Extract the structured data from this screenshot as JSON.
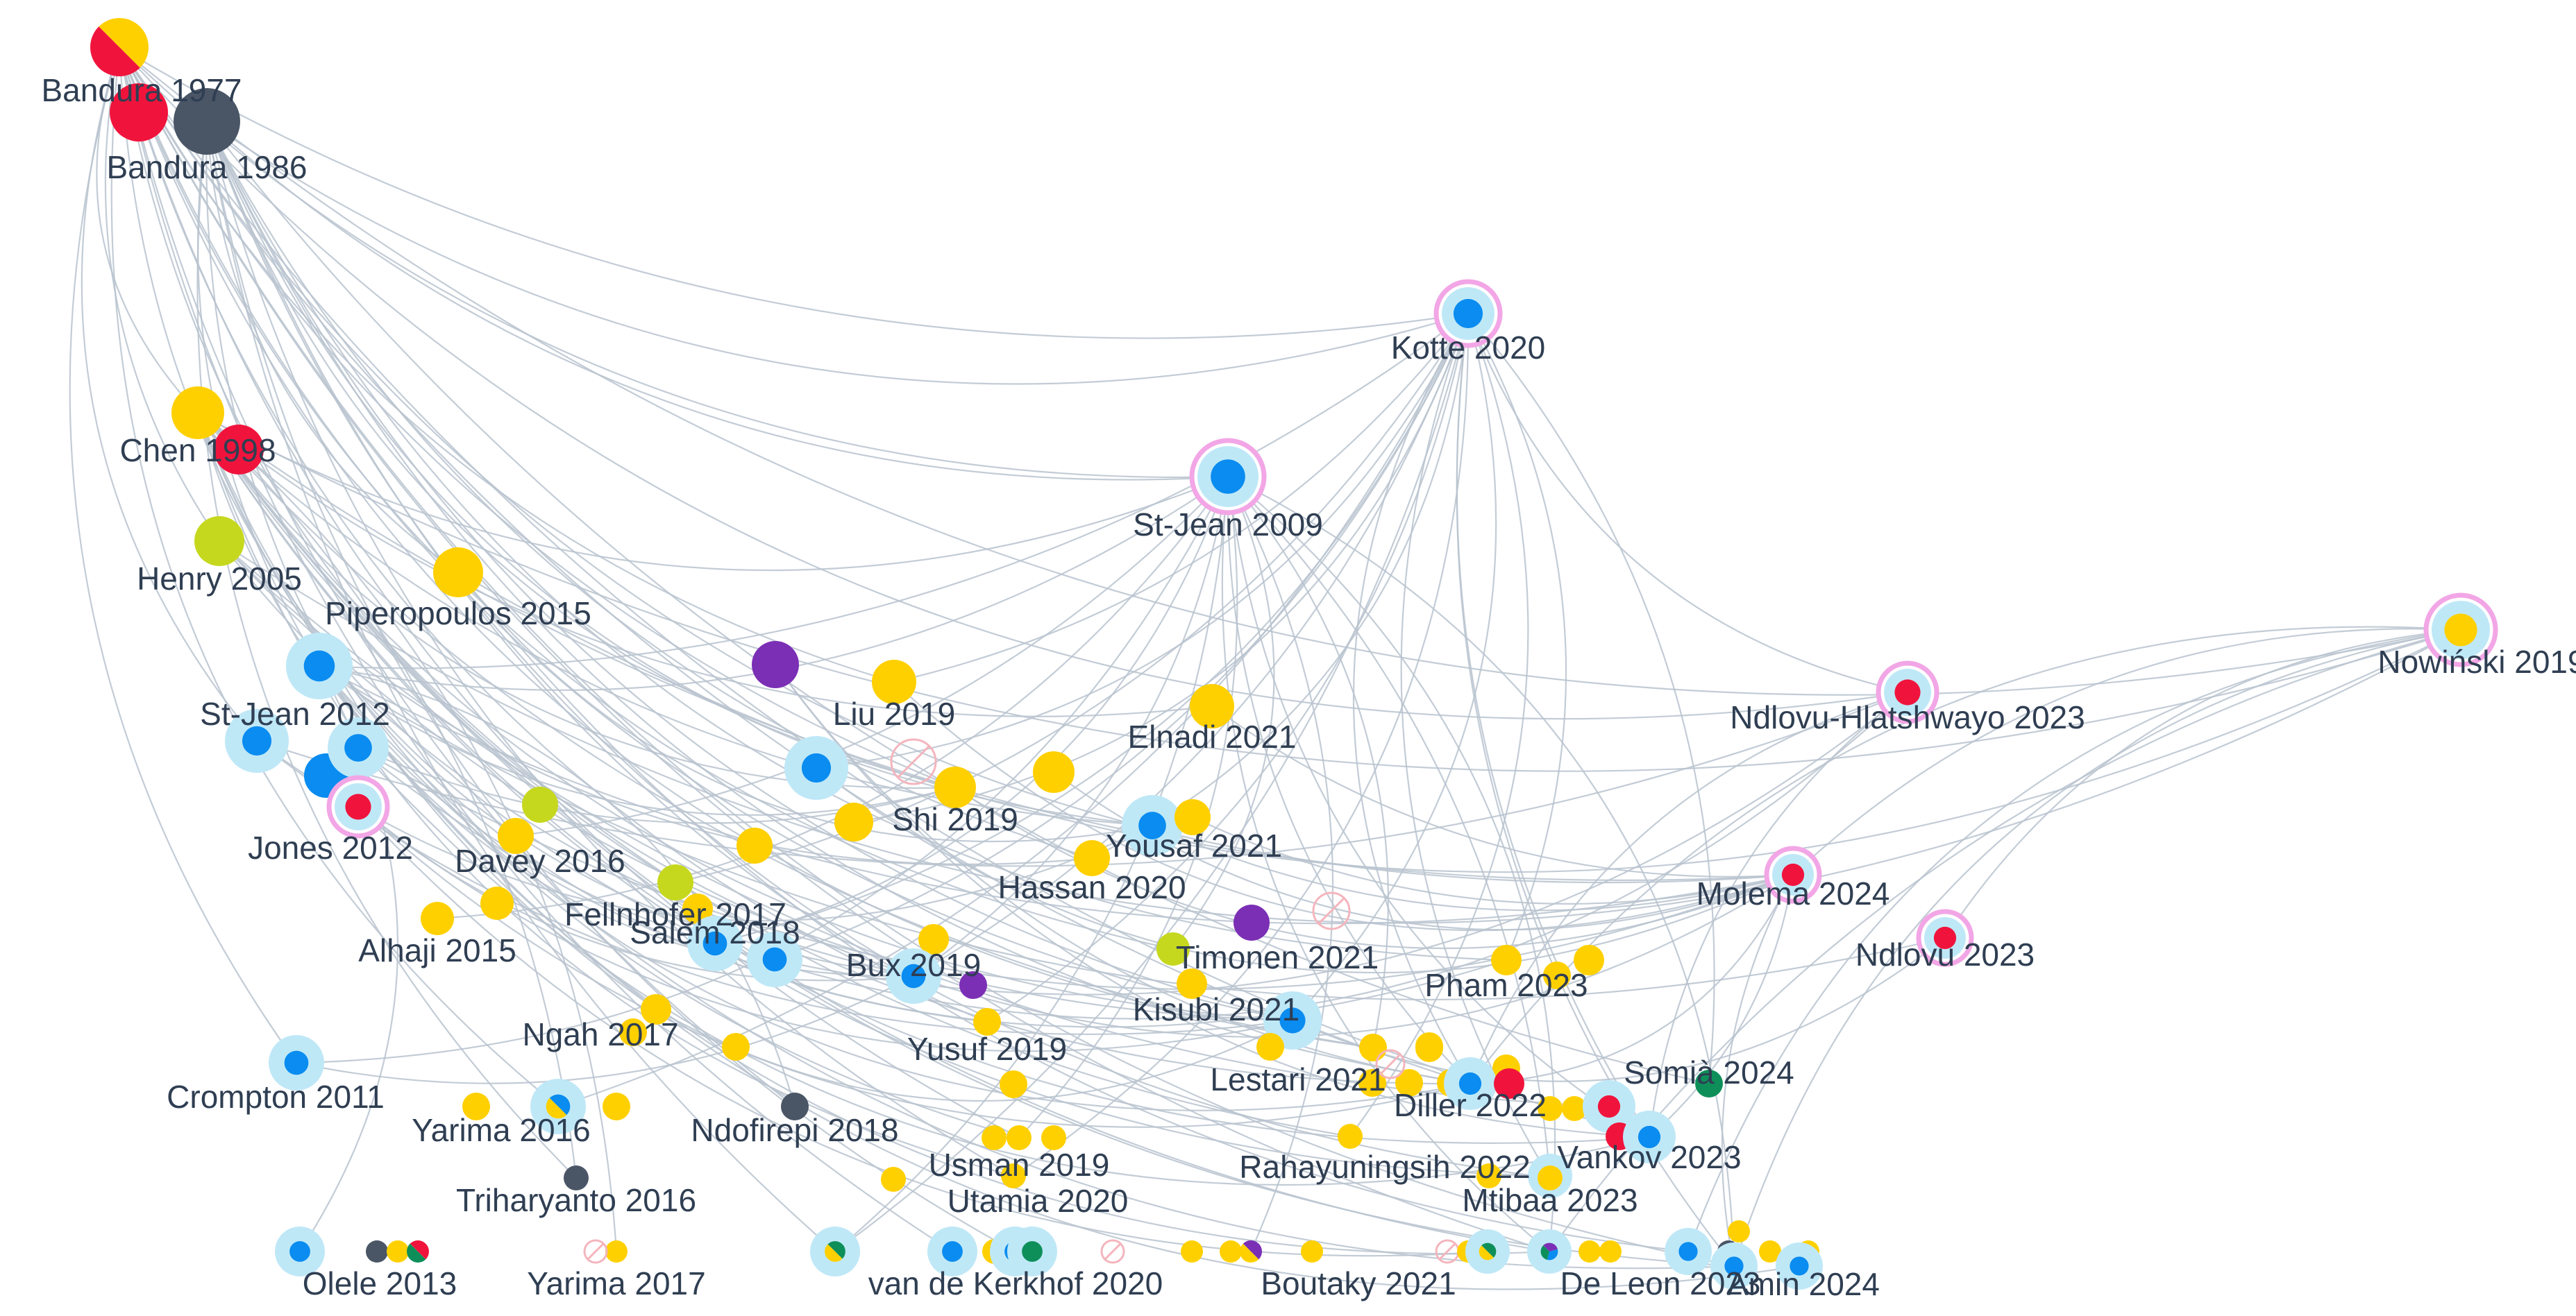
{
  "colors": {
    "yellow": "#FFD000",
    "blue": "#0A8CF0",
    "red": "#F0143C",
    "dark": "#4A5666",
    "lime": "#C6D81E",
    "purple": "#7B2FB5",
    "green": "#0E8F5A",
    "halo_blue": "#BFE8F7",
    "halo_pink": "#F2A6E6",
    "edge": "#B9C3CF",
    "label": "#2F3E52",
    "excluded": "#F4B5BD"
  },
  "nodes": [
    {
      "id": "bandura1977",
      "label": "Bandura 1977",
      "colors": [
        "yellow",
        "red"
      ]
    },
    {
      "id": "bandura1977b",
      "label": "",
      "colors": [
        "red"
      ]
    },
    {
      "id": "bandura1986",
      "label": "Bandura 1986",
      "colors": [
        "dark"
      ]
    },
    {
      "id": "chen1998",
      "label": "Chen 1998",
      "colors": [
        "yellow"
      ]
    },
    {
      "id": "chen1998b",
      "label": "",
      "colors": [
        "red"
      ]
    },
    {
      "id": "henry2005",
      "label": "Henry 2005",
      "colors": [
        "lime"
      ]
    },
    {
      "id": "piperopoulos2015",
      "label": "Piperopoulos 2015",
      "colors": [
        "yellow"
      ]
    },
    {
      "id": "stjean2012",
      "label": "St-Jean 2012",
      "colors": [
        "blue"
      ],
      "halo": "halo_blue"
    },
    {
      "id": "n_b1",
      "label": "",
      "colors": [
        "blue"
      ],
      "halo": "halo_blue"
    },
    {
      "id": "n_b2",
      "label": "",
      "colors": [
        "blue"
      ]
    },
    {
      "id": "n_b3",
      "label": "",
      "colors": [
        "blue"
      ],
      "halo": "halo_blue"
    },
    {
      "id": "jones2012",
      "label": "Jones 2012",
      "colors": [
        "red"
      ],
      "halo": "halo_pink"
    },
    {
      "id": "davey2016",
      "label": "Davey 2016",
      "colors": [
        "yellow"
      ]
    },
    {
      "id": "n_lime1",
      "label": "",
      "colors": [
        "lime"
      ]
    },
    {
      "id": "alhaji2015",
      "label": "Alhaji 2015",
      "colors": [
        "yellow"
      ]
    },
    {
      "id": "n_y_a",
      "label": "",
      "colors": [
        "yellow"
      ]
    },
    {
      "id": "fellnhofer2017",
      "label": "Fellnhofer 2017",
      "colors": [
        "lime"
      ]
    },
    {
      "id": "n_y_b",
      "label": "",
      "colors": [
        "yellow"
      ]
    },
    {
      "id": "salem2018",
      "label": "Salem 2018",
      "colors": [
        "blue"
      ],
      "halo": "halo_blue"
    },
    {
      "id": "n_b4",
      "label": "",
      "colors": [
        "blue"
      ],
      "halo": "halo_blue"
    },
    {
      "id": "ngah2017",
      "label": "Ngah 2017",
      "colors": [
        "yellow"
      ]
    },
    {
      "id": "n_y_c",
      "label": "",
      "colors": [
        "yellow"
      ]
    },
    {
      "id": "n_y_d",
      "label": "",
      "colors": [
        "yellow"
      ]
    },
    {
      "id": "crompton2011",
      "label": "Crompton 2011",
      "colors": [
        "blue"
      ],
      "halo": "halo_blue"
    },
    {
      "id": "yarima2016",
      "label": "Yarima 2016",
      "colors": [
        "blue",
        "yellow"
      ],
      "halo": "halo_blue"
    },
    {
      "id": "n_y_e",
      "label": "",
      "colors": [
        "yellow"
      ]
    },
    {
      "id": "n_y_f",
      "label": "",
      "colors": [
        "yellow"
      ]
    },
    {
      "id": "ndofirepi2018",
      "label": "Ndofirepi 2018",
      "colors": [
        "dark"
      ]
    },
    {
      "id": "triharyanto2016",
      "label": "Triharyanto 2016",
      "colors": [
        "dark"
      ]
    },
    {
      "id": "olele2013",
      "label": "Olele 2013",
      "colors": [
        "blue"
      ],
      "halo": "halo_blue"
    },
    {
      "id": "n_o1",
      "label": "",
      "colors": [
        "dark"
      ]
    },
    {
      "id": "n_o2",
      "label": "",
      "colors": [
        "yellow"
      ]
    },
    {
      "id": "n_o3",
      "label": "",
      "colors": [
        "red",
        "green"
      ]
    },
    {
      "id": "yarima2017",
      "label": "Yarima 2017",
      "colors": [
        "yellow"
      ]
    },
    {
      "id": "n_ex1",
      "label": "",
      "colors": [],
      "excluded": true
    },
    {
      "id": "n_purple1",
      "label": "",
      "colors": [
        "purple"
      ]
    },
    {
      "id": "liu2019",
      "label": "Liu 2019",
      "colors": [
        "yellow"
      ]
    },
    {
      "id": "n_b5",
      "label": "",
      "colors": [
        "blue"
      ],
      "halo": "halo_blue"
    },
    {
      "id": "n_ex2",
      "label": "",
      "colors": [],
      "excluded": true
    },
    {
      "id": "shi2019",
      "label": "Shi 2019",
      "colors": [
        "yellow"
      ]
    },
    {
      "id": "n_y_g",
      "label": "",
      "colors": [
        "yellow"
      ]
    },
    {
      "id": "n_y_h",
      "label": "",
      "colors": [
        "yellow"
      ]
    },
    {
      "id": "n_y_i",
      "label": "",
      "colors": [
        "yellow"
      ]
    },
    {
      "id": "elnadi2021",
      "label": "Elnadi 2021",
      "colors": [
        "yellow"
      ]
    },
    {
      "id": "yousaf2021",
      "label": "Yousaf 2021",
      "colors": [
        "blue"
      ],
      "halo": "halo_blue"
    },
    {
      "id": "n_y_j",
      "label": "",
      "colors": [
        "yellow"
      ]
    },
    {
      "id": "hassan2020",
      "label": "Hassan 2020",
      "colors": [
        "yellow"
      ]
    },
    {
      "id": "n_ex3",
      "label": "",
      "colors": [],
      "excluded": true
    },
    {
      "id": "n_purple2",
      "label": "",
      "colors": [
        "purple"
      ]
    },
    {
      "id": "timonen2021",
      "label": "Timonen 2021",
      "colors": [
        "lime"
      ]
    },
    {
      "id": "n_y_k",
      "label": "",
      "colors": [
        "yellow"
      ]
    },
    {
      "id": "bux2019",
      "label": "Bux 2019",
      "colors": [
        "blue"
      ],
      "halo": "halo_blue"
    },
    {
      "id": "n_purple3",
      "label": "",
      "colors": [
        "purple"
      ]
    },
    {
      "id": "kisubi2021",
      "label": "Kisubi 2021",
      "colors": [
        "blue"
      ],
      "halo": "halo_blue"
    },
    {
      "id": "n_y_l",
      "label": "",
      "colors": [
        "yellow"
      ]
    },
    {
      "id": "yusuf2019",
      "label": "Yusuf 2019",
      "colors": [
        "yellow"
      ]
    },
    {
      "id": "n_y_m",
      "label": "",
      "colors": [
        "yellow"
      ]
    },
    {
      "id": "n_y_n",
      "label": "",
      "colors": [
        "yellow"
      ]
    },
    {
      "id": "lestari2021",
      "label": "Lestari 2021",
      "colors": [
        "yellow"
      ]
    },
    {
      "id": "n_y_o",
      "label": "",
      "colors": [
        "yellow"
      ]
    },
    {
      "id": "n_y_p",
      "label": "",
      "colors": [
        "yellow"
      ]
    },
    {
      "id": "n_y_q",
      "label": "",
      "colors": [
        "yellow"
      ]
    },
    {
      "id": "n_y_r",
      "label": "",
      "colors": [
        "yellow"
      ]
    },
    {
      "id": "usman2019",
      "label": "Usman 2019",
      "colors": [
        "yellow"
      ]
    },
    {
      "id": "n_y_s",
      "label": "",
      "colors": [
        "yellow"
      ]
    },
    {
      "id": "utamia2020",
      "label": "Utamia 2020",
      "colors": [
        "yellow"
      ]
    },
    {
      "id": "n_y_t",
      "label": "",
      "colors": [
        "yellow"
      ]
    },
    {
      "id": "vandekerkhof2020",
      "label": "van de Kerkhof 2020",
      "colors": [
        "green",
        "yellow"
      ],
      "halo": "halo_blue"
    },
    {
      "id": "n_b6",
      "label": "",
      "colors": [
        "blue"
      ],
      "halo": "halo_blue"
    },
    {
      "id": "n_y_u",
      "label": "",
      "colors": [
        "yellow"
      ]
    },
    {
      "id": "n_b7",
      "label": "",
      "colors": [
        "blue"
      ],
      "halo": "halo_blue"
    },
    {
      "id": "n_g1",
      "label": "",
      "colors": [
        "green"
      ],
      "halo": "halo_blue"
    },
    {
      "id": "n_ex4",
      "label": "",
      "colors": [],
      "excluded": true
    },
    {
      "id": "n_y_v",
      "label": "",
      "colors": [
        "yellow"
      ]
    },
    {
      "id": "n_y_w",
      "label": "",
      "colors": [
        "yellow"
      ]
    },
    {
      "id": "boutaky2021",
      "label": "Boutaky 2021",
      "colors": [
        "purple",
        "yellow"
      ]
    },
    {
      "id": "n_y_x",
      "label": "",
      "colors": [
        "yellow"
      ]
    },
    {
      "id": "kotte2020",
      "label": "Kotte 2020",
      "colors": [
        "blue"
      ],
      "halo": "halo_pink"
    },
    {
      "id": "stjean2009",
      "label": "St-Jean 2009",
      "colors": [
        "blue"
      ],
      "halo": "halo_pink"
    },
    {
      "id": "nowinski2019",
      "label": "Nowiński 2019",
      "colors": [
        "yellow"
      ],
      "halo": "halo_pink"
    },
    {
      "id": "ndlovuhlatshwayo2023",
      "label": "Ndlovu-Hlatshwayo 2023",
      "colors": [
        "red"
      ],
      "halo": "halo_pink"
    },
    {
      "id": "molema2024",
      "label": "Molema 2024",
      "colors": [
        "red"
      ],
      "halo": "halo_pink"
    },
    {
      "id": "ndlovu2023",
      "label": "Ndlovu 2023",
      "colors": [
        "red"
      ],
      "halo": "halo_pink"
    },
    {
      "id": "pham2023",
      "label": "Pham 2023",
      "colors": [
        "yellow"
      ]
    },
    {
      "id": "n_y_y",
      "label": "",
      "colors": [
        "yellow"
      ]
    },
    {
      "id": "n_y_z",
      "label": "",
      "colors": [
        "yellow"
      ]
    },
    {
      "id": "n_y_aa",
      "label": "",
      "colors": [
        "yellow"
      ]
    },
    {
      "id": "n_ex5",
      "label": "",
      "colors": [],
      "excluded": true
    },
    {
      "id": "n_y_ab",
      "label": "",
      "colors": [
        "yellow"
      ]
    },
    {
      "id": "n_y_ac",
      "label": "",
      "colors": [
        "yellow"
      ]
    },
    {
      "id": "diller2022",
      "label": "Diller 2022",
      "colors": [
        "blue"
      ],
      "halo": "halo_blue"
    },
    {
      "id": "n_r1",
      "label": "",
      "colors": [
        "red"
      ]
    },
    {
      "id": "n_y_ad",
      "label": "",
      "colors": [
        "yellow"
      ]
    },
    {
      "id": "n_y_ae",
      "label": "",
      "colors": [
        "yellow"
      ]
    },
    {
      "id": "n_r2",
      "label": "",
      "colors": [
        "red"
      ],
      "halo": "halo_blue"
    },
    {
      "id": "somia2024",
      "label": "Somià 2024",
      "colors": [
        "green"
      ]
    },
    {
      "id": "n_r3",
      "label": "",
      "colors": [
        "red"
      ]
    },
    {
      "id": "vankov2023",
      "label": "Vankov 2023",
      "colors": [
        "blue"
      ],
      "halo": "halo_blue"
    },
    {
      "id": "rahayuningsih2022",
      "label": "Rahayuningsih 2022",
      "colors": [
        "yellow"
      ]
    },
    {
      "id": "n_y_af",
      "label": "",
      "colors": [
        "yellow"
      ]
    },
    {
      "id": "n_b8",
      "label": "",
      "colors": [
        "blue"
      ],
      "halo": "halo_blue"
    },
    {
      "id": "mtibaa2023",
      "label": "Mtibaa 2023",
      "colors": [
        "yellow"
      ]
    },
    {
      "id": "n_ex6",
      "label": "",
      "colors": [],
      "excluded": true
    },
    {
      "id": "n_y_ag",
      "label": "",
      "colors": [
        "yellow"
      ]
    },
    {
      "id": "n_mix1",
      "label": "",
      "colors": [
        "green",
        "yellow"
      ],
      "halo": "halo_blue"
    },
    {
      "id": "deleon2023",
      "label": "De Leon 2023",
      "colors": [
        "purple",
        "blue",
        "green"
      ],
      "halo": "halo_blue"
    },
    {
      "id": "n_y_ah",
      "label": "",
      "colors": [
        "yellow"
      ]
    },
    {
      "id": "n_y_ai",
      "label": "",
      "colors": [
        "yellow"
      ]
    },
    {
      "id": "n_b9",
      "label": "",
      "colors": [
        "blue"
      ],
      "halo": "halo_blue"
    },
    {
      "id": "n_d1",
      "label": "",
      "colors": [
        "dark"
      ]
    },
    {
      "id": "n_y_aj",
      "label": "",
      "colors": [
        "yellow"
      ]
    },
    {
      "id": "amin2024",
      "label": "Amin 2024",
      "colors": [
        "blue"
      ],
      "halo": "halo_blue"
    },
    {
      "id": "n_y_ak",
      "label": "",
      "colors": [
        "yellow"
      ]
    },
    {
      "id": "n_y_al",
      "label": "",
      "colors": [
        "yellow"
      ]
    },
    {
      "id": "n_b10",
      "label": "",
      "colors": [
        "blue"
      ],
      "halo": "halo_blue"
    }
  ]
}
